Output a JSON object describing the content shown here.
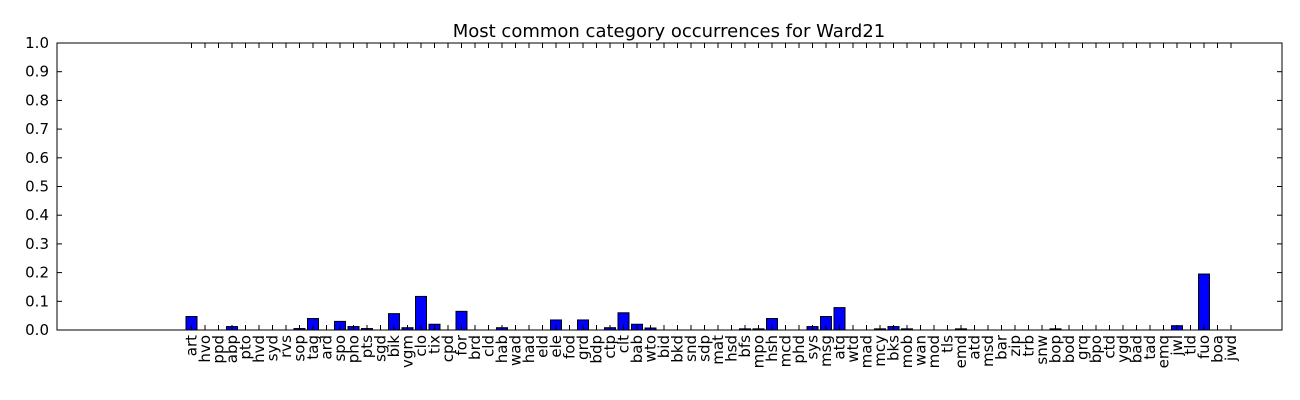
{
  "chart_data": {
    "type": "bar",
    "title": "Most common category occurrences for Ward21",
    "xlabel": "",
    "ylabel": "",
    "ylim": [
      0,
      1.0
    ],
    "yticks": [
      "0.0",
      "0.1",
      "0.2",
      "0.3",
      "0.4",
      "0.5",
      "0.6",
      "0.7",
      "0.8",
      "0.9",
      "1.0"
    ],
    "bar_color": "#0000ff",
    "grid": false,
    "categories": [
      "art",
      "hvo",
      "ppd",
      "abp",
      "pto",
      "hvd",
      "syd",
      "rvs",
      "sop",
      "tag",
      "ard",
      "spo",
      "pho",
      "pts",
      "sgd",
      "bik",
      "vgm",
      "clo",
      "tix",
      "cpd",
      "for",
      "brd",
      "cld",
      "hab",
      "wad",
      "had",
      "eld",
      "ele",
      "fod",
      "grd",
      "bdp",
      "ctp",
      "clt",
      "bab",
      "wto",
      "bid",
      "bkd",
      "snd",
      "sdp",
      "mat",
      "hsd",
      "bfs",
      "mpo",
      "hsh",
      "mcd",
      "phd",
      "sys",
      "msg",
      "atq",
      "wtd",
      "mad",
      "mcy",
      "bks",
      "mob",
      "wan",
      "mod",
      "tls",
      "emd",
      "atd",
      "msd",
      "bar",
      "zip",
      "trb",
      "snw",
      "bop",
      "bod",
      "grq",
      "bpo",
      "ctd",
      "ygd",
      "bad",
      "tad",
      "emq",
      "jwl",
      "tld",
      "fuo",
      "boa",
      "jwd"
    ],
    "values": [
      0.047,
      0,
      0,
      0.012,
      0,
      0,
      0,
      0,
      0.005,
      0.04,
      0,
      0.03,
      0.012,
      0.005,
      0,
      0.057,
      0.008,
      0.117,
      0.02,
      0,
      0.065,
      0,
      0,
      0.008,
      0,
      0,
      0,
      0.035,
      0,
      0.035,
      0,
      0.008,
      0.06,
      0.02,
      0.007,
      0,
      0,
      0,
      0,
      0,
      0,
      0.004,
      0.004,
      0.04,
      0,
      0,
      0.012,
      0.047,
      0.078,
      0,
      0,
      0.004,
      0.012,
      0.004,
      0,
      0,
      0,
      0.004,
      0,
      0,
      0,
      0,
      0,
      0,
      0.004,
      0,
      0,
      0,
      0,
      0,
      0,
      0,
      0,
      0.015,
      0,
      0.195,
      0,
      0
    ]
  }
}
